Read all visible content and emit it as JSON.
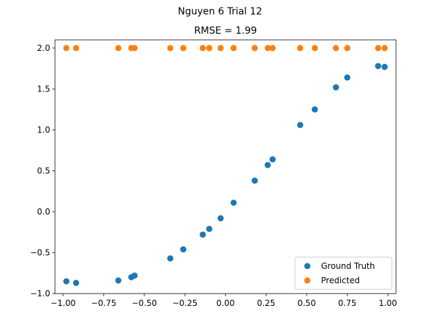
{
  "chart_data": {
    "type": "scatter",
    "suptitle": "Nguyen 6 Trial 12",
    "title": "RMSE = 1.99",
    "xlabel": "",
    "ylabel": "",
    "xlim": [
      -1.05,
      1.05
    ],
    "ylim": [
      -1.0,
      2.1
    ],
    "xticks": [
      -1.0,
      -0.75,
      -0.5,
      -0.25,
      0.0,
      0.25,
      0.5,
      0.75,
      1.0
    ],
    "xtick_labels": [
      "−1.00",
      "−0.75",
      "−0.50",
      "−0.25",
      "0.00",
      "0.25",
      "0.50",
      "0.75",
      "1.00"
    ],
    "yticks": [
      -1.0,
      -0.5,
      0.0,
      0.5,
      1.0,
      1.5,
      2.0
    ],
    "ytick_labels": [
      "−1.0",
      "−0.5",
      "0.0",
      "0.5",
      "1.0",
      "1.5",
      "2.0"
    ],
    "grid": false,
    "legend_position": "lower-right",
    "series": [
      {
        "name": "Ground Truth",
        "color": "#1f77b4",
        "points": [
          [
            -0.98,
            -0.85
          ],
          [
            -0.92,
            -0.87
          ],
          [
            -0.66,
            -0.84
          ],
          [
            -0.58,
            -0.8
          ],
          [
            -0.56,
            -0.78
          ],
          [
            -0.34,
            -0.57
          ],
          [
            -0.26,
            -0.46
          ],
          [
            -0.14,
            -0.28
          ],
          [
            -0.1,
            -0.21
          ],
          [
            -0.03,
            -0.08
          ],
          [
            0.05,
            0.11
          ],
          [
            0.18,
            0.38
          ],
          [
            0.26,
            0.57
          ],
          [
            0.29,
            0.64
          ],
          [
            0.46,
            1.06
          ],
          [
            0.55,
            1.25
          ],
          [
            0.68,
            1.52
          ],
          [
            0.75,
            1.64
          ],
          [
            0.94,
            1.78
          ],
          [
            0.98,
            1.77
          ]
        ]
      },
      {
        "name": "Predicted",
        "color": "#ff7f0e",
        "points": [
          [
            -0.98,
            2.0
          ],
          [
            -0.92,
            2.0
          ],
          [
            -0.66,
            2.0
          ],
          [
            -0.58,
            2.0
          ],
          [
            -0.56,
            2.0
          ],
          [
            -0.34,
            2.0
          ],
          [
            -0.26,
            2.0
          ],
          [
            -0.14,
            2.0
          ],
          [
            -0.1,
            2.0
          ],
          [
            -0.03,
            2.0
          ],
          [
            0.05,
            2.0
          ],
          [
            0.18,
            2.0
          ],
          [
            0.26,
            2.0
          ],
          [
            0.29,
            2.0
          ],
          [
            0.46,
            2.0
          ],
          [
            0.55,
            2.0
          ],
          [
            0.68,
            2.0
          ],
          [
            0.75,
            2.0
          ],
          [
            0.94,
            2.0
          ],
          [
            0.98,
            2.0
          ]
        ]
      }
    ]
  }
}
